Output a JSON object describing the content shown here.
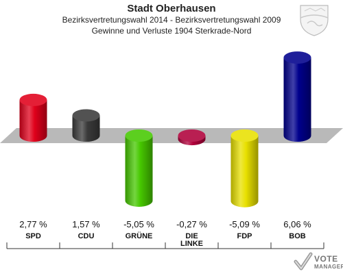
{
  "header": {
    "title": "Stadt Oberhausen",
    "subtitle1": "Bezirksvertretungswahl 2014 - Bezirksvertretungswahl 2009",
    "subtitle2": "Gewinne und Verluste 1904 Sterkrade-Nord"
  },
  "logo": {
    "line1": "VOTE",
    "line2": "MANAGER"
  },
  "chart_data": {
    "type": "bar",
    "title": "Stadt Oberhausen",
    "subtitle": "Bezirksvertretungswahl 2014 - Bezirksvertretungswahl 2009 / Gewinne und Verluste 1904 Sterkrade-Nord",
    "xlabel": "",
    "ylabel": "",
    "categories": [
      "SPD",
      "CDU",
      "GRÜNE",
      "DIE LINKE",
      "FDP",
      "BOB"
    ],
    "category_lines": [
      [
        "SPD"
      ],
      [
        "CDU"
      ],
      [
        "GRÜNE"
      ],
      [
        "DIE",
        "LINKE"
      ],
      [
        "FDP"
      ],
      [
        "BOB"
      ]
    ],
    "values": [
      2.77,
      1.57,
      -5.05,
      -0.27,
      -5.09,
      6.06
    ],
    "value_labels": [
      "2,77 %",
      "1,57 %",
      "-5,05 %",
      "-0,27 %",
      "-5,09 %",
      "6,06 %"
    ],
    "colors": [
      "#e0001b",
      "#3a3a3a",
      "#46c800",
      "#b0003a",
      "#e8e000",
      "#00008c"
    ],
    "grid": false,
    "legend": "none"
  }
}
